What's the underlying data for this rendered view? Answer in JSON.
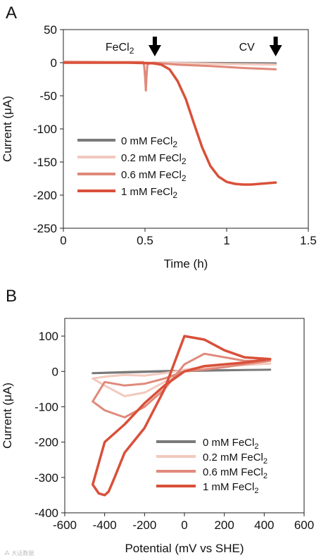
{
  "watermark": "⁂ 大话数据",
  "chart_data": [
    {
      "type": "line",
      "panel": "A",
      "xlabel": "Time (h)",
      "ylabel": "Current (μA)",
      "xlim": [
        0,
        1.5
      ],
      "ylim": [
        -250,
        50
      ],
      "xticks": [
        "0",
        "0.5",
        "1",
        "1.5"
      ],
      "yticks": [
        "50",
        "0",
        "-50",
        "-100",
        "-150",
        "-200",
        "-250"
      ],
      "grid": false,
      "legend_position": "lower-left",
      "annotations": [
        {
          "text": "FeCl",
          "sub": "2",
          "x": 0.56
        },
        {
          "text": "CV",
          "sub": "",
          "x": 1.3
        }
      ],
      "series": [
        {
          "name": "0 mM FeCl",
          "sub": "2",
          "color": "#7a7a7a",
          "x": [
            0,
            0.5,
            1.0,
            1.3
          ],
          "y": [
            0,
            0,
            -0.5,
            -1
          ]
        },
        {
          "name": "0.2 mM FeCl",
          "sub": "2",
          "color": "#f2c9bd",
          "x": [
            0,
            0.3,
            0.55,
            0.8,
            1.0,
            1.3
          ],
          "y": [
            2,
            1,
            0,
            -1,
            -2,
            -3
          ]
        },
        {
          "name": "0.6 mM FeCl",
          "sub": "2",
          "color": "#e0897a",
          "x": [
            0,
            0.49,
            0.495,
            0.5,
            0.505,
            0.51,
            0.515,
            0.55,
            0.7,
            0.9,
            1.1,
            1.3
          ],
          "y": [
            1,
            1,
            -5,
            -20,
            -42,
            -18,
            -2,
            0,
            -3,
            -5,
            -8,
            -10
          ]
        },
        {
          "name": "1 mM FeCl",
          "sub": "2",
          "color": "#d9503a",
          "x": [
            0,
            0.2,
            0.4,
            0.55,
            0.6,
            0.65,
            0.7,
            0.75,
            0.8,
            0.85,
            0.9,
            0.95,
            1.0,
            1.05,
            1.1,
            1.15,
            1.2,
            1.25,
            1.3
          ],
          "y": [
            0,
            0,
            0,
            -1,
            -3,
            -10,
            -28,
            -55,
            -92,
            -128,
            -156,
            -172,
            -180,
            -183,
            -184,
            -184,
            -183,
            -182,
            -181
          ]
        }
      ]
    },
    {
      "type": "line",
      "panel": "B",
      "xlabel": "Potential (mV vs SHE)",
      "ylabel": "Current (μA)",
      "xlim": [
        -600,
        600
      ],
      "ylim": [
        -400,
        150
      ],
      "xticks": [
        "-600",
        "-400",
        "-200",
        "0",
        "200",
        "400",
        "600"
      ],
      "yticks": [
        "100",
        "0",
        "-100",
        "-200",
        "-300",
        "-400"
      ],
      "grid": false,
      "legend_position": "lower-right",
      "series": [
        {
          "name": "0 mM",
          "sub_pre": "FeCl",
          "sub": "2",
          "color": "#7a7a7a",
          "x": [
            -460,
            -300,
            -100,
            100,
            300,
            430,
            300,
            100,
            -100,
            -300,
            -460
          ],
          "y": [
            -5,
            -3,
            0,
            2,
            4,
            5,
            4,
            3,
            1,
            -2,
            -5
          ]
        },
        {
          "name": "0.2 mM",
          "sub_pre": "FeCl",
          "sub": "2",
          "color": "#f2c9bd",
          "x": [
            -460,
            -400,
            -300,
            -200,
            -100,
            0,
            100,
            200,
            300,
            430,
            300,
            200,
            100,
            0,
            -100,
            -200,
            -300,
            -400,
            -460
          ],
          "y": [
            -20,
            -40,
            -70,
            -60,
            -30,
            0,
            10,
            15,
            18,
            22,
            18,
            16,
            12,
            5,
            -5,
            -12,
            -10,
            -15,
            -20
          ]
        },
        {
          "name": "0.6 mM",
          "sub_pre": "FeCl",
          "sub": "2",
          "color": "#e0897a",
          "x": [
            -460,
            -400,
            -300,
            -200,
            -100,
            0,
            100,
            200,
            300,
            430,
            300,
            200,
            100,
            0,
            -100,
            -200,
            -300,
            -400,
            -460
          ],
          "y": [
            -85,
            -110,
            -130,
            -100,
            -50,
            20,
            50,
            40,
            30,
            30,
            20,
            12,
            5,
            0,
            -20,
            -35,
            -40,
            -30,
            -85
          ]
        },
        {
          "name": "1 mM",
          "sub_pre": "FeCl",
          "sub": "2",
          "color": "#d9503a",
          "x": [
            -460,
            -430,
            -400,
            -380,
            -350,
            -300,
            -200,
            -100,
            0,
            100,
            200,
            300,
            430,
            300,
            200,
            100,
            0,
            -100,
            -200,
            -300,
            -400,
            -460
          ],
          "y": [
            -320,
            -345,
            -350,
            -340,
            -300,
            -230,
            -160,
            -50,
            100,
            90,
            60,
            40,
            35,
            25,
            20,
            15,
            0,
            -40,
            -90,
            -150,
            -200,
            -320
          ]
        }
      ]
    }
  ]
}
